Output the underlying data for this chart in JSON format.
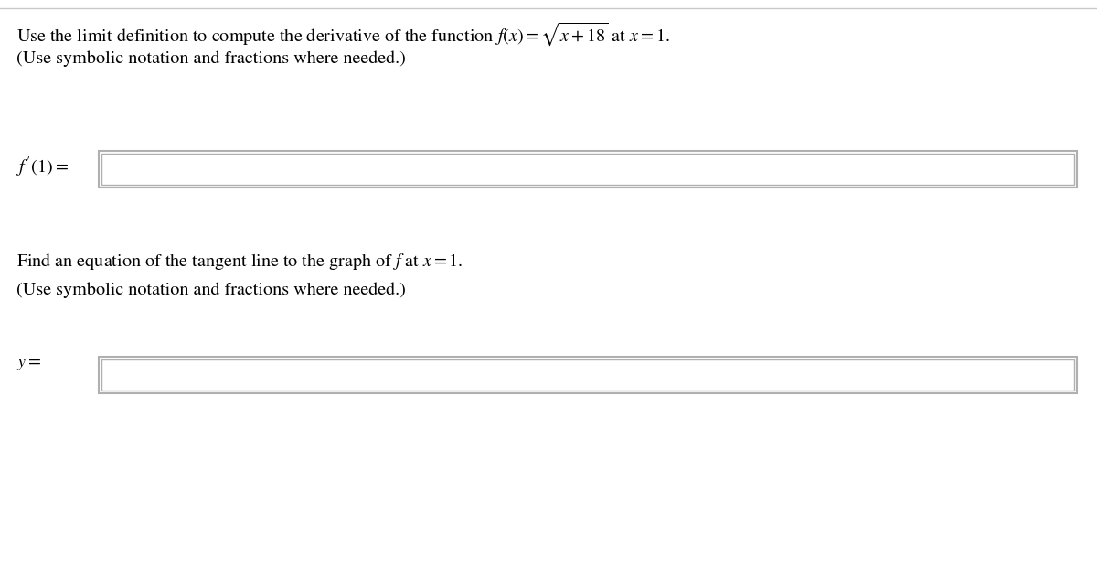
{
  "bg_color": "#ffffff",
  "top_border_color": "#c8c8c8",
  "line1_plain": "Use the limit definition to compute the derivative of the function ",
  "line1_math": "$f(x) = \\sqrt{x + 18}$",
  "line1_end": " at $x = 1$.",
  "line2": "(Use symbolic notation and fractions where needed.)",
  "label1": "$f'(1) =$",
  "label2": "$y =$",
  "section2_line1_plain": "Find an equation of the tangent line to the graph of ",
  "section2_line1_f": "$f$",
  "section2_line1_end": " at $x = 1$.",
  "section2_line2": "(Use symbolic notation and fractions where needed.)",
  "box_border_color": "#b0b0b0",
  "box_fill": "#ffffff",
  "text_color": "#000000",
  "font_size_main": 14.5,
  "font_size_label": 14.5,
  "fig_width": 12.0,
  "fig_height": 6.21,
  "dpi": 100
}
